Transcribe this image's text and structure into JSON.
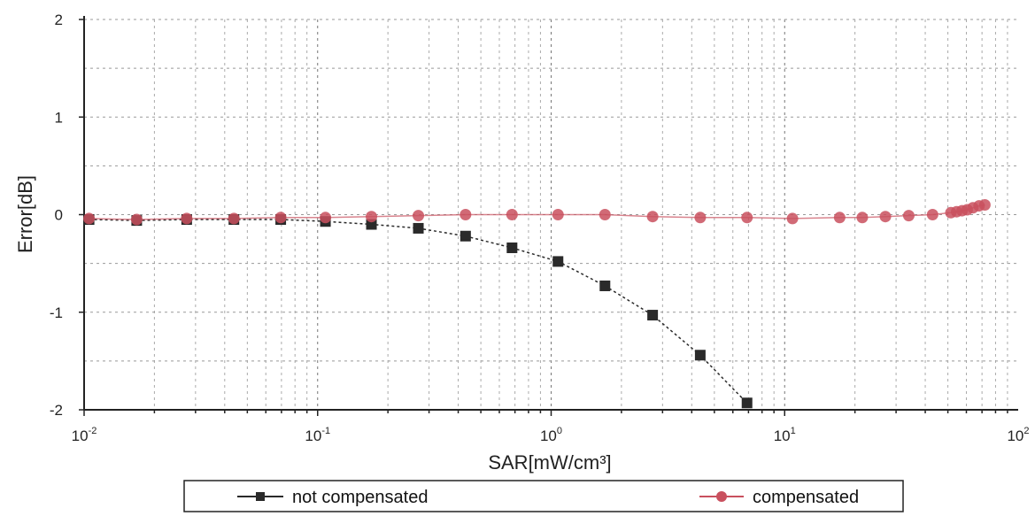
{
  "chart_data": {
    "type": "scatter",
    "xscale": "log",
    "xlim": [
      0.01,
      100
    ],
    "ylim": [
      -2,
      2
    ],
    "xlabel": "SAR[mW/cm³]",
    "ylabel": "Error[dB]",
    "x_tick_labels": [
      {
        "value": 0.01,
        "base": "10",
        "exp": "-2"
      },
      {
        "value": 0.1,
        "base": "10",
        "exp": "-1"
      },
      {
        "value": 1,
        "base": "10",
        "exp": "0"
      },
      {
        "value": 10,
        "base": "10",
        "exp": "1"
      },
      {
        "value": 100,
        "base": "10",
        "exp": "2"
      }
    ],
    "y_ticks": [
      2,
      1,
      0,
      -1,
      -2
    ],
    "y_tick_labels": [
      "2",
      "1",
      "0",
      "-1",
      "-2"
    ],
    "grid": true,
    "legend_position": "bottom",
    "series": [
      {
        "name": "not compensated",
        "color": "#2a2a2a",
        "marker": "square",
        "x": [
          0.0105,
          0.0168,
          0.0275,
          0.0438,
          0.0695,
          0.108,
          0.17,
          0.27,
          0.43,
          0.68,
          1.07,
          1.7,
          2.72,
          4.35,
          6.9
        ],
        "y": [
          -0.05,
          -0.06,
          -0.05,
          -0.05,
          -0.05,
          -0.07,
          -0.1,
          -0.14,
          -0.22,
          -0.34,
          -0.48,
          -0.73,
          -1.03,
          -1.44,
          -1.93
        ]
      },
      {
        "name": "compensated",
        "color": "#c9505e",
        "marker": "circle",
        "x": [
          0.0105,
          0.0168,
          0.0275,
          0.0438,
          0.0695,
          0.108,
          0.17,
          0.27,
          0.43,
          0.68,
          1.07,
          1.7,
          2.72,
          4.35,
          6.9,
          10.8,
          17.2,
          21.5,
          27.0,
          34.0,
          43.0,
          51.5,
          54.5,
          57.5,
          60.5,
          64.0,
          68.0,
          72.0
        ],
        "y": [
          -0.04,
          -0.05,
          -0.04,
          -0.04,
          -0.03,
          -0.03,
          -0.02,
          -0.01,
          0.0,
          0.0,
          0.0,
          0.0,
          -0.02,
          -0.03,
          -0.03,
          -0.04,
          -0.03,
          -0.03,
          -0.02,
          -0.01,
          0.0,
          0.02,
          0.03,
          0.04,
          0.05,
          0.07,
          0.09,
          0.1
        ]
      }
    ]
  }
}
